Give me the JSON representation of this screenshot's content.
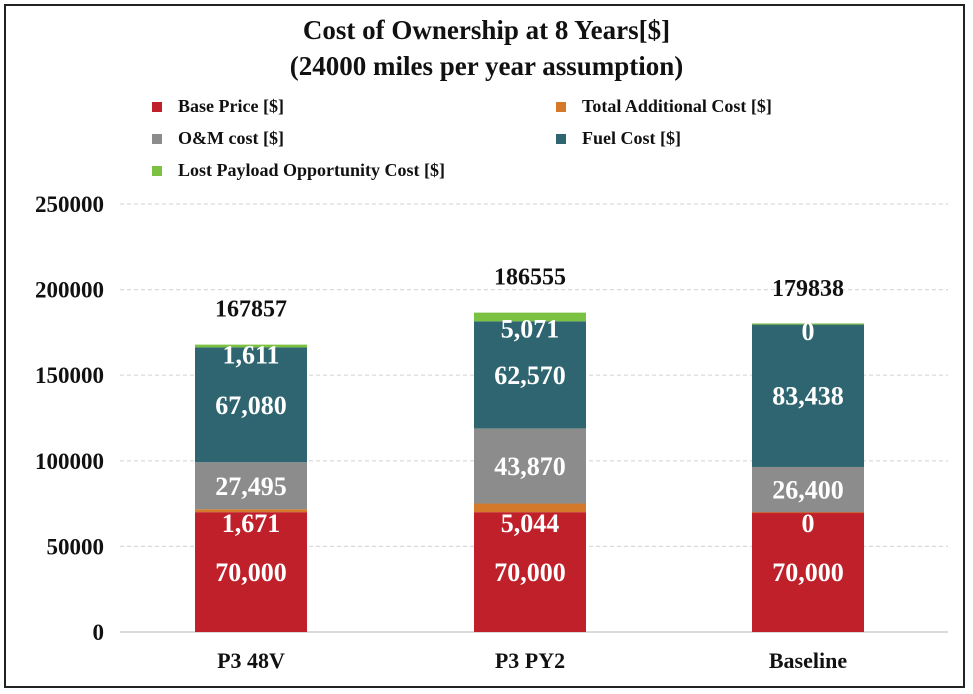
{
  "chart_data": {
    "type": "bar",
    "stacked": true,
    "title": "Cost of Ownership at 8 Years[$]",
    "subtitle": "(24000 miles per year assumption)",
    "xlabel": "",
    "ylabel": "",
    "ylim": [
      0,
      250000
    ],
    "yticks": [
      "0",
      "50000",
      "100000",
      "150000",
      "200000",
      "250000"
    ],
    "ytick_values": [
      0,
      50000,
      100000,
      150000,
      200000,
      250000
    ],
    "grid": true,
    "legend_position": "top",
    "categories": [
      "P3 48V",
      "P3 PY2",
      "Baseline"
    ],
    "totals": [
      "167857",
      "186555",
      "179838"
    ],
    "series": [
      {
        "name": "Base Price [$]",
        "color": "#c0202a",
        "values": [
          70000,
          70000,
          70000
        ],
        "labels": [
          "70,000",
          "70,000",
          "70,000"
        ]
      },
      {
        "name": "Total Additional Cost [$]",
        "color": "#d4782a",
        "values": [
          1671,
          5044,
          0
        ],
        "labels": [
          "1,671",
          "5,044",
          "0"
        ]
      },
      {
        "name": "O&M cost [$]",
        "color": "#8c8c8c",
        "values": [
          27495,
          43870,
          26400
        ],
        "labels": [
          "27,495",
          "43,870",
          "26,400"
        ]
      },
      {
        "name": "Fuel Cost [$]",
        "color": "#2e6570",
        "values": [
          67080,
          62570,
          83438
        ],
        "labels": [
          "67,080",
          "62,570",
          "83,438"
        ]
      },
      {
        "name": "Lost Payload Opportunity Cost [$]",
        "color": "#7cc242",
        "values": [
          1611,
          5071,
          0
        ],
        "labels": [
          "1,611",
          "5,071",
          "0"
        ]
      }
    ]
  }
}
